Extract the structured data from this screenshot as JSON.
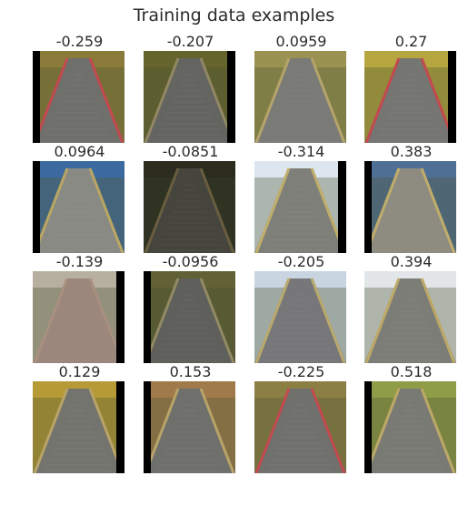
{
  "figure": {
    "title": "Training data examples",
    "images": [
      {
        "label": "-0.259",
        "sky": "#8a7b3a",
        "road": "#6f6f6c",
        "edge": "#c24a4e",
        "side": "left",
        "tone": 1.0
      },
      {
        "label": "-0.207",
        "sky": "#6b6a30",
        "road": "#6a6a66",
        "edge": "#9a8f6a",
        "side": "right",
        "tone": 0.95
      },
      {
        "label": "0.0959",
        "sky": "#9a9250",
        "road": "#7a7a76",
        "edge": "#b5a46a",
        "side": "none",
        "tone": 1.0
      },
      {
        "label": "0.27",
        "sky": "#b6a640",
        "road": "#757572",
        "edge": "#c24a4e",
        "side": "right",
        "tone": 1.0
      },
      {
        "label": "0.0964",
        "sky": "#3c6aa0",
        "road": "#8a8a84",
        "edge": "#b9a662",
        "side": "left",
        "tone": 1.0
      },
      {
        "label": "-0.0851",
        "sky": "#3a3a28",
        "road": "#5c5c52",
        "edge": "#8d7d56",
        "side": "none",
        "tone": 0.75
      },
      {
        "label": "-0.314",
        "sky": "#dde6ef",
        "road": "#7f7f79",
        "edge": "#bfad6a",
        "side": "right",
        "tone": 1.0
      },
      {
        "label": "0.383",
        "sky": "#4f6f95",
        "road": "#8e8c80",
        "edge": "#c0ad6c",
        "side": "left",
        "tone": 1.0
      },
      {
        "label": "-0.139",
        "sky": "#b7b0a0",
        "road": "#9b877c",
        "edge": "#a89080",
        "side": "right",
        "tone": 1.05
      },
      {
        "label": "-0.0956",
        "sky": "#6e6c3c",
        "road": "#6a6a66",
        "edge": "#a39a70",
        "side": "left",
        "tone": 0.9
      },
      {
        "label": "-0.205",
        "sky": "#c8d4df",
        "road": "#77777a",
        "edge": "#b9a86c",
        "side": "none",
        "tone": 1.0
      },
      {
        "label": "0.394",
        "sky": "#e2e6e8",
        "road": "#7d7d78",
        "edge": "#bda866",
        "side": "none",
        "tone": 1.0
      },
      {
        "label": "0.129",
        "sky": "#b69a35",
        "road": "#74746f",
        "edge": "#b9a366",
        "side": "right",
        "tone": 1.0
      },
      {
        "label": "0.153",
        "sky": "#a07a4a",
        "road": "#6f6f6c",
        "edge": "#b8a469",
        "side": "left",
        "tone": 1.0
      },
      {
        "label": "-0.225",
        "sky": "#8c7f44",
        "road": "#70706c",
        "edge": "#c24a4e",
        "side": "none",
        "tone": 1.0
      },
      {
        "label": "0.518",
        "sky": "#8f9c48",
        "road": "#7a7a75",
        "edge": "#bca867",
        "side": "left",
        "tone": 1.0
      }
    ]
  }
}
